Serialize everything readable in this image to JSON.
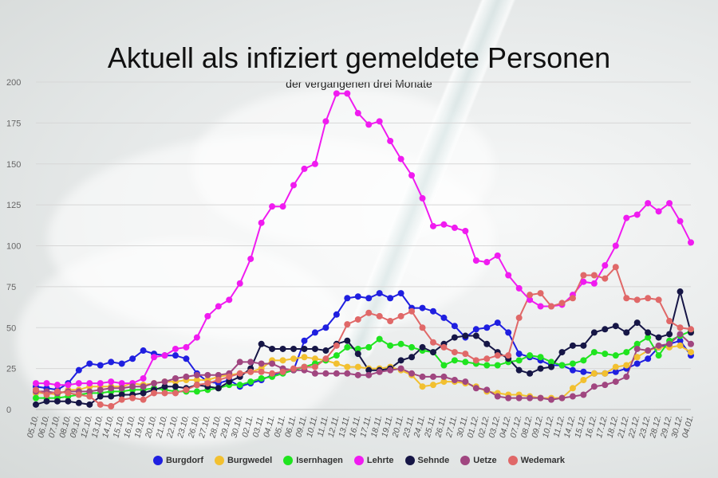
{
  "chart_data": {
    "type": "line",
    "title": "Aktuell als infiziert gemeldete Personen",
    "subtitle": "der vergangenen drei Monate",
    "ylim": [
      0,
      200
    ],
    "y_ticks": [
      "0",
      "25",
      "50",
      "75",
      "100",
      "125",
      "150",
      "175",
      "200"
    ],
    "grid": "horizontal",
    "legend_position": "bottom",
    "categories": [
      "05.10.",
      "06.10.",
      "07.10.",
      "08.10.",
      "09.10.",
      "12.10.",
      "13.10.",
      "14.10.",
      "15.10.",
      "16.10.",
      "19.10.",
      "20.10.",
      "21.10.",
      "22.10.",
      "23.10.",
      "26.10.",
      "27.10.",
      "28.10.",
      "29.10.",
      "30.10.",
      "02.11.",
      "03.11.",
      "04.11.",
      "05.11.",
      "06.11.",
      "09.11.",
      "10.11.",
      "11.11.",
      "12.11.",
      "13.11.",
      "16.11.",
      "17.11.",
      "18.11.",
      "19.11.",
      "20.11.",
      "23.11.",
      "24.11.",
      "25.11.",
      "26.11.",
      "27.11.",
      "30.11.",
      "01.12.",
      "02.12.",
      "03.12.",
      "04.12.",
      "07.12.",
      "08.12.",
      "09.12.",
      "10.12.",
      "11.12.",
      "14.12.",
      "15.12.",
      "16.12.",
      "17.12.",
      "18.12.",
      "21.12.",
      "22.12.",
      "23.12.",
      "28.12.",
      "29.12.",
      "30.12.",
      "04.01."
    ],
    "x_tick_labels": [
      "05.10.",
      "06.10.",
      "07.10.",
      "08.10.",
      "09.10.",
      "12.10.",
      "13.10.",
      "14.10.",
      "15.10.",
      "16.10.",
      "19.10.",
      "20.10.",
      "21.10.",
      "22.10.",
      "23.10.",
      "26.10.",
      "27.10.",
      "28.10.",
      "29.10.",
      "30.10.",
      "02.11.",
      "03.11.",
      "04.11.",
      "05.11.",
      "06.11.",
      "09.11.",
      "10.11.",
      "11.11.",
      "12.11.",
      "13.11.",
      "16.11.",
      "17.11.",
      "18.11.",
      "19.11.",
      "20.11.",
      "23.11.",
      "24.11.",
      "25.11.",
      "26.11.",
      "27.11.",
      "30.11.",
      "01.12.",
      "02.12.",
      "03.12.",
      "04.12.",
      "07.12.",
      "08.12.",
      "09.12.",
      "10.12.",
      "11.12.",
      "14.12.",
      "15.12.",
      "16.12.",
      "17.12.",
      "18.12.",
      "21.12.",
      "22.12.",
      "23.12.",
      "28.12.",
      "29.12.",
      "30.12.",
      "04.01."
    ],
    "series": [
      {
        "name": "Burgdorf",
        "color": "#1f1fe0",
        "values": [
          14,
          13,
          12,
          16,
          24,
          28,
          27,
          29,
          28,
          31,
          36,
          34,
          33,
          33,
          31,
          22,
          17,
          16,
          18,
          14,
          16,
          18,
          21,
          23,
          24,
          42,
          47,
          50,
          58,
          68,
          69,
          68,
          71,
          68,
          71,
          62,
          62,
          60,
          56,
          51,
          44,
          49,
          50,
          53,
          47,
          34,
          32,
          30,
          27,
          27,
          24,
          23,
          22,
          22,
          23,
          25,
          28,
          31,
          38,
          40,
          42,
          33
        ]
      },
      {
        "name": "Burgwedel",
        "color": "#f2c030",
        "values": [
          10,
          10,
          9,
          12,
          12,
          14,
          14,
          14,
          14,
          16,
          15,
          16,
          17,
          17,
          18,
          18,
          18,
          20,
          21,
          22,
          23,
          25,
          30,
          30,
          31,
          32,
          31,
          30,
          28,
          26,
          26,
          25,
          25,
          26,
          24,
          21,
          14,
          15,
          17,
          17,
          16,
          14,
          11,
          10,
          9,
          9,
          8,
          7,
          7,
          7,
          13,
          18,
          22,
          22,
          26,
          27,
          32,
          36,
          38,
          38,
          39,
          35
        ]
      },
      {
        "name": "Isernhagen",
        "color": "#1fe41f",
        "values": [
          7,
          7,
          7,
          8,
          9,
          10,
          10,
          11,
          11,
          12,
          12,
          13,
          12,
          11,
          11,
          11,
          12,
          13,
          15,
          15,
          17,
          19,
          20,
          22,
          24,
          26,
          28,
          30,
          33,
          38,
          37,
          38,
          43,
          39,
          40,
          38,
          36,
          35,
          27,
          30,
          29,
          28,
          27,
          27,
          29,
          30,
          33,
          32,
          29,
          27,
          28,
          30,
          35,
          34,
          33,
          35,
          40,
          44,
          33,
          42,
          45,
          48
        ]
      },
      {
        "name": "Lehrte",
        "color": "#f01bf0",
        "values": [
          16,
          16,
          15,
          15,
          16,
          16,
          16,
          17,
          16,
          16,
          19,
          32,
          33,
          37,
          38,
          44,
          57,
          63,
          67,
          77,
          92,
          114,
          124,
          124,
          137,
          147,
          150,
          176,
          193,
          193,
          181,
          174,
          176,
          164,
          153,
          143,
          129,
          112,
          113,
          111,
          109,
          91,
          90,
          94,
          82,
          74,
          67,
          63,
          63,
          64,
          70,
          78,
          77,
          88,
          100,
          117,
          119,
          126,
          121,
          126,
          115,
          102
        ]
      },
      {
        "name": "Sehnde",
        "color": "#161646",
        "values": [
          3,
          5,
          5,
          5,
          4,
          3,
          8,
          8,
          9,
          9,
          10,
          12,
          14,
          14,
          13,
          15,
          14,
          13,
          17,
          20,
          25,
          40,
          37,
          37,
          37,
          37,
          37,
          36,
          40,
          42,
          34,
          24,
          24,
          25,
          30,
          32,
          38,
          35,
          40,
          44,
          45,
          45,
          40,
          35,
          31,
          24,
          22,
          25,
          26,
          35,
          39,
          39,
          47,
          49,
          51,
          47,
          53,
          47,
          44,
          46,
          72,
          47
        ]
      },
      {
        "name": "Uetze",
        "color": "#a04680",
        "values": [
          11,
          11,
          10,
          11,
          11,
          11,
          12,
          13,
          13,
          14,
          14,
          16,
          17,
          19,
          20,
          21,
          21,
          21,
          22,
          29,
          29,
          28,
          28,
          25,
          24,
          24,
          22,
          22,
          22,
          22,
          21,
          21,
          23,
          24,
          25,
          22,
          20,
          20,
          20,
          18,
          17,
          13,
          12,
          8,
          7,
          7,
          7,
          7,
          6,
          7,
          8,
          9,
          14,
          15,
          17,
          20,
          37,
          36,
          39,
          40,
          46,
          40
        ]
      },
      {
        "name": "Wedemark",
        "color": "#e06868",
        "values": [
          12,
          9,
          11,
          10,
          9,
          8,
          3,
          2,
          6,
          7,
          6,
          10,
          10,
          10,
          12,
          15,
          16,
          18,
          20,
          22,
          23,
          23,
          22,
          23,
          25,
          26,
          26,
          31,
          39,
          52,
          55,
          59,
          57,
          54,
          57,
          60,
          50,
          41,
          38,
          35,
          34,
          30,
          31,
          33,
          33,
          56,
          70,
          71,
          63,
          65,
          68,
          82,
          82,
          80,
          87,
          68,
          67,
          68,
          67,
          54,
          50,
          49
        ]
      }
    ]
  }
}
